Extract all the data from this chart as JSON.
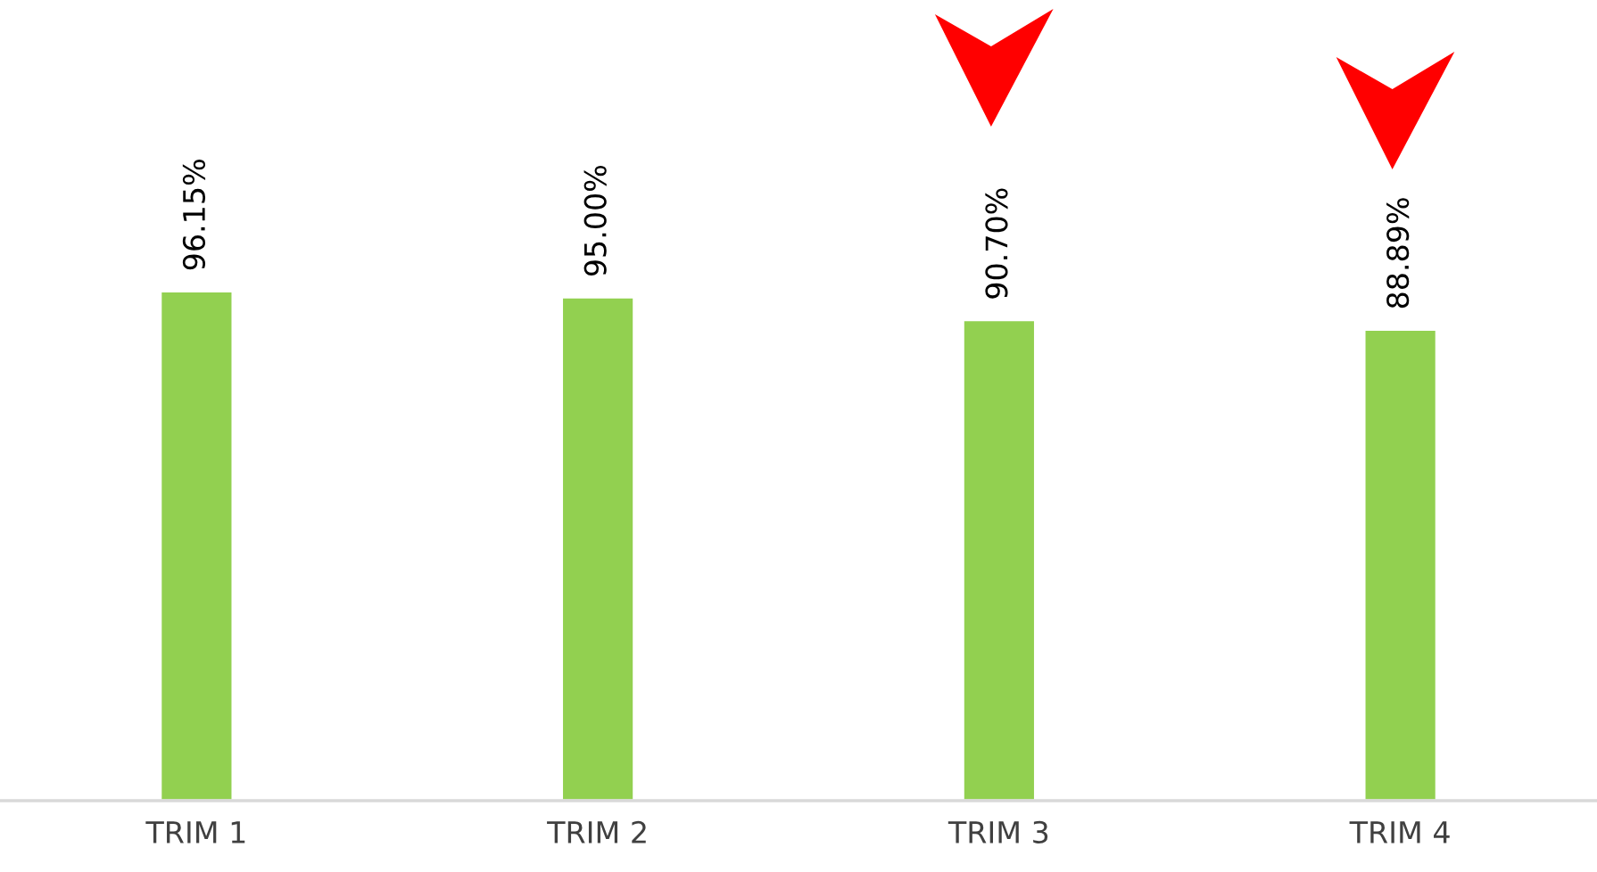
{
  "chart_data": {
    "type": "bar",
    "categories": [
      "TRIM 1",
      "TRIM 2",
      "TRIM 3",
      "TRIM 4"
    ],
    "values": [
      96.15,
      95.0,
      90.7,
      88.89
    ],
    "value_labels": [
      "96.15%",
      "95.00%",
      "90.70%",
      "88.89%"
    ],
    "color": "#92d050",
    "tick_labels": "x",
    "grid": false,
    "legend": false
  }
}
